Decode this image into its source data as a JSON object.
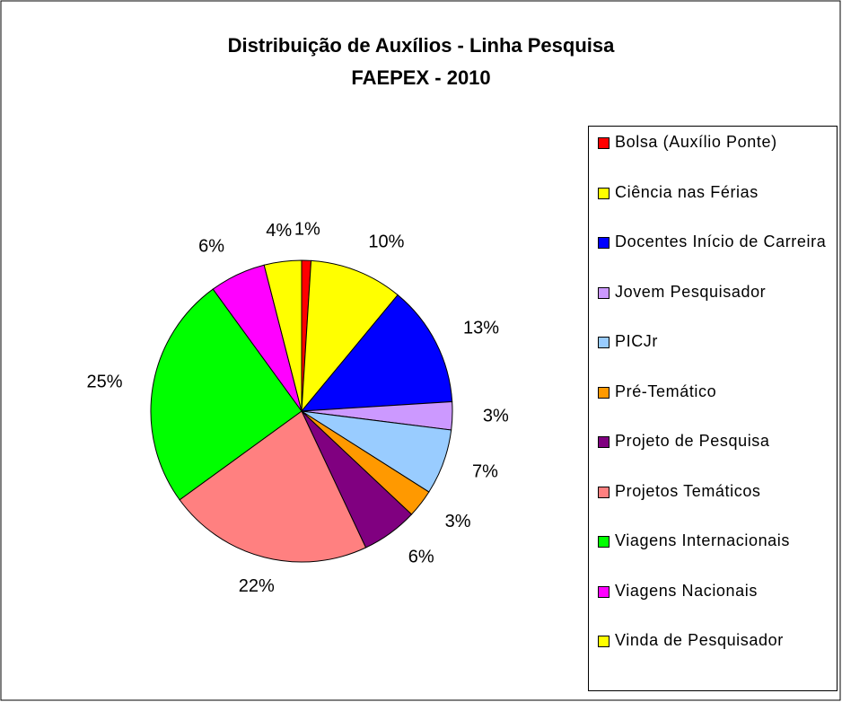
{
  "chart_data": {
    "type": "pie",
    "title": "Distribuição de Auxílios - Linha Pesquisa",
    "subtitle": "FAEPEX - 2010",
    "categories": [
      "Bolsa (Auxílio Ponte)",
      "Ciência nas Férias",
      "Docentes Início de Carreira",
      "Jovem Pesquisador",
      "PICJr",
      "Pré-Temático",
      "Projeto de Pesquisa",
      "Projetos Temáticos",
      "Viagens Internacionais",
      "Viagens Nacionais",
      "Vinda de Pesquisador"
    ],
    "values": [
      1,
      10,
      13,
      3,
      7,
      3,
      6,
      22,
      25,
      6,
      4
    ],
    "value_labels": [
      "1%",
      "10%",
      "13%",
      "3%",
      "7%",
      "3%",
      "6%",
      "22%",
      "25%",
      "6%",
      "4%"
    ],
    "colors": [
      "#ff0000",
      "#ffff00",
      "#0000ff",
      "#cc99ff",
      "#99ccff",
      "#ff9900",
      "#800080",
      "#ff8080",
      "#00ff00",
      "#ff00ff",
      "#ffff00"
    ],
    "legend": "right"
  }
}
